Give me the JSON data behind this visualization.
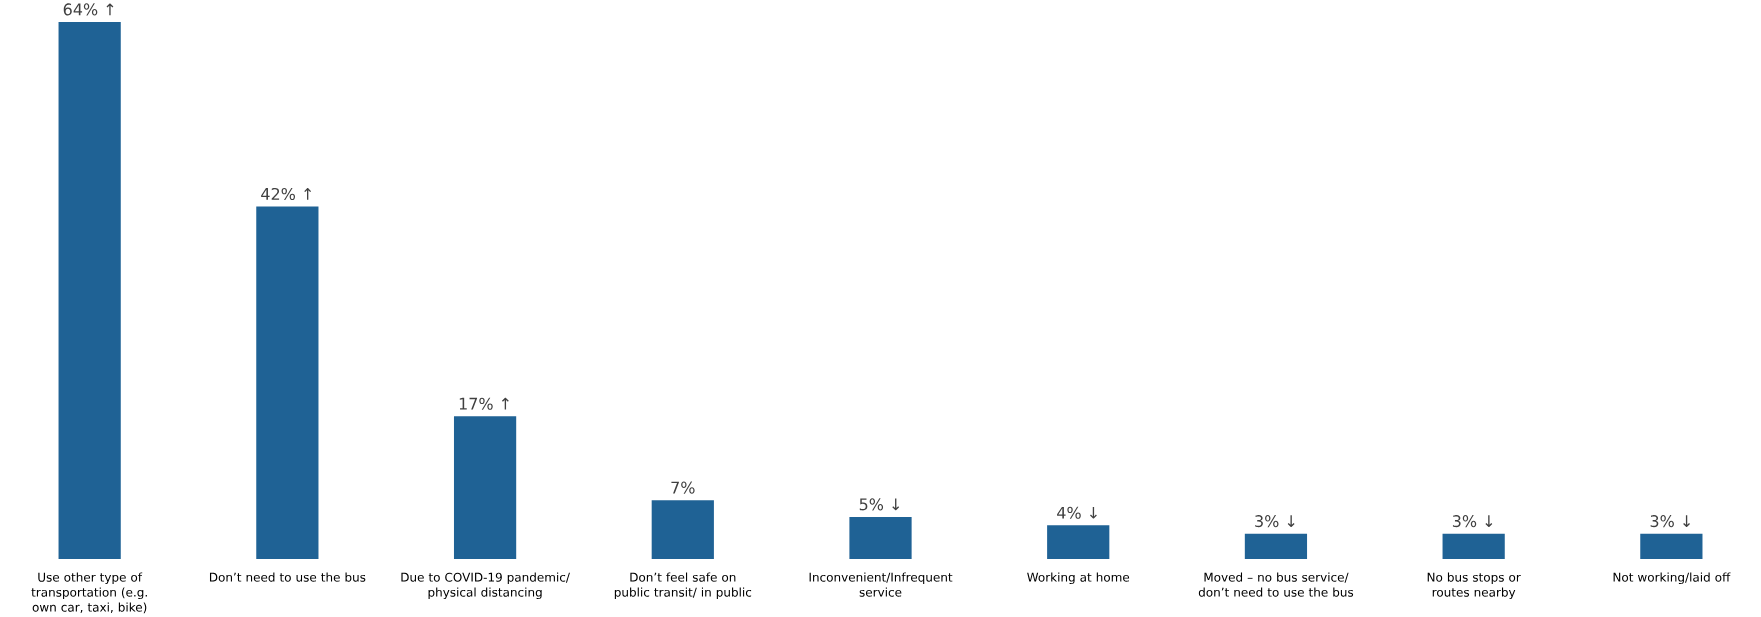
{
  "chart_data": {
    "type": "bar",
    "categories": [
      "Use other type of transportation (e.g. own car, taxi, bike)",
      "Don’t need to use the bus",
      "Due to COVID-19 pandemic/ physical distancing",
      "Don’t feel safe on public transit/ in public",
      "Inconvenient/Infrequent service",
      "Working at home",
      "Moved – no bus service/ don’t need to use the bus",
      "No bus stops or routes nearby",
      "Not working/laid off"
    ],
    "values": [
      64,
      42,
      17,
      7,
      5,
      4,
      3,
      3,
      3
    ],
    "value_labels": [
      "64% ↑",
      "42% ↑",
      "17% ↑",
      "7%",
      "5% ↓",
      "4% ↓",
      "3% ↓",
      "3% ↓",
      "3% ↓"
    ],
    "color": "#1f6295"
  }
}
